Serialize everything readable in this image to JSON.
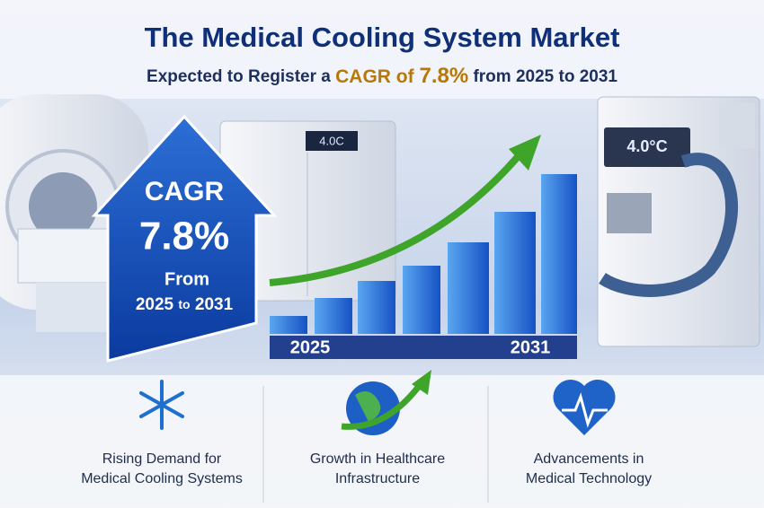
{
  "header": {
    "title": "The Medical Cooling System Market",
    "subtitle": [
      "Expected to Register a ",
      "CAGR of ",
      "7.8%",
      " from 2025 to 2031"
    ]
  },
  "cagr_arrow": {
    "label": "CAGR",
    "rate": "7.8%",
    "from": "From",
    "start": "2025",
    "to": "to",
    "end": "2031"
  },
  "equipment": {
    "fridge_display": "4.0C",
    "cooler_display": "4.0°C"
  },
  "growth_chart": {
    "start_label": "2025",
    "end_label": "2031"
  },
  "features": [
    {
      "lines": [
        "Rising Demand for",
        "Medical Cooling Systems"
      ]
    },
    {
      "lines": [
        "Growth in Healthcare",
        "Infrastructure"
      ]
    },
    {
      "lines": [
        "Advancements in",
        "Medical Technology"
      ]
    }
  ]
}
